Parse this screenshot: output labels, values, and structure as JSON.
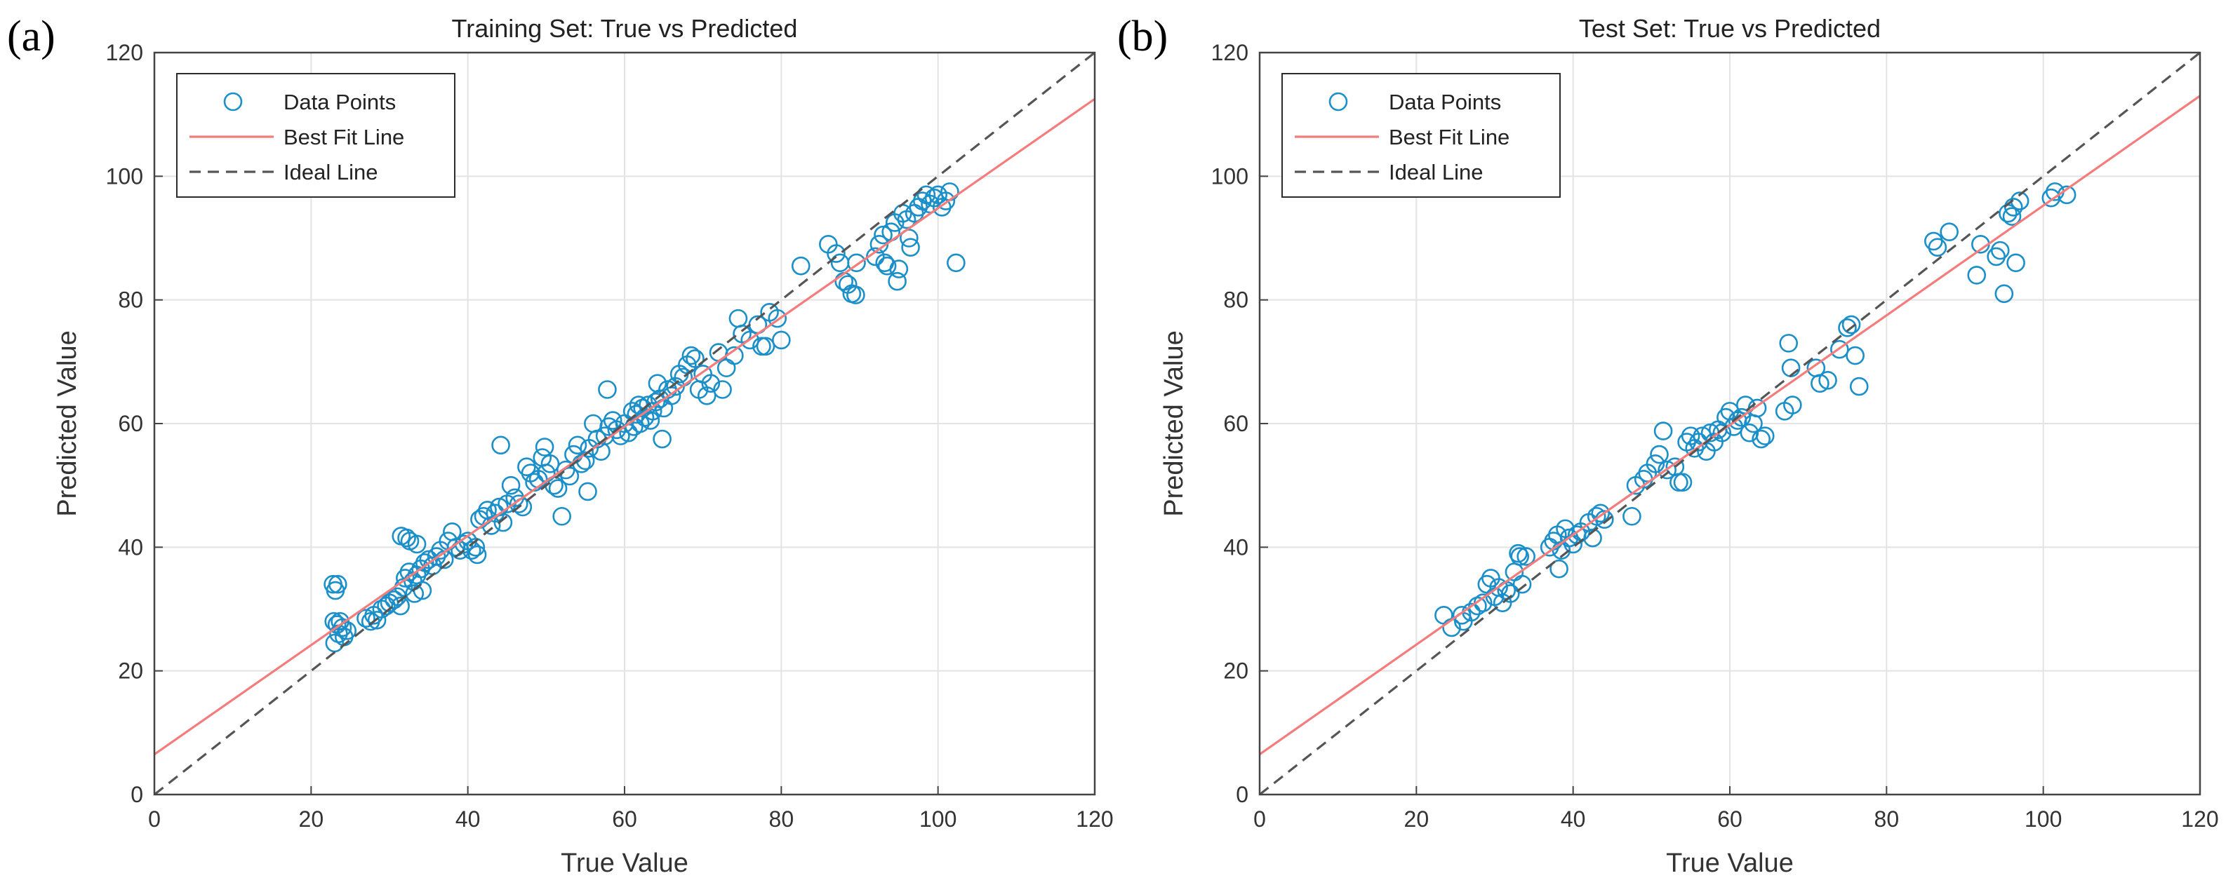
{
  "colors": {
    "points": "#1a8fc9",
    "fit_line": "#f47c7c",
    "ideal_line": "#555555",
    "grid": "#e3e3e3",
    "axes": "#444444"
  },
  "legend_location": "top-left",
  "chart_data": [
    {
      "type": "scatter",
      "panel_label": "(a)",
      "title": "Training Set: True vs Predicted",
      "xlabel": "True Value",
      "ylabel": "Predicted Value",
      "xlim": [
        0,
        120
      ],
      "ylim": [
        0,
        120
      ],
      "xticks": [
        "0",
        "20",
        "40",
        "60",
        "80",
        "100",
        "120"
      ],
      "yticks": [
        "0",
        "20",
        "40",
        "60",
        "80",
        "100",
        "120"
      ],
      "grid": true,
      "legend": [
        "Data Points",
        "Best Fit Line",
        "Ideal Line"
      ],
      "series": [
        {
          "name": "Data Points",
          "kind": "markers",
          "points": [
            [
              22.8,
              34
            ],
            [
              23.1,
              33
            ],
            [
              23.4,
              34
            ],
            [
              22.9,
              28
            ],
            [
              23.3,
              27.5
            ],
            [
              23.7,
              28
            ],
            [
              24,
              27
            ],
            [
              23.5,
              26
            ],
            [
              24.2,
              25.5
            ],
            [
              23,
              24.5
            ],
            [
              24.6,
              26.5
            ],
            [
              27,
              28.5
            ],
            [
              27.6,
              28
            ],
            [
              28,
              29
            ],
            [
              28.4,
              28.2
            ],
            [
              29,
              30
            ],
            [
              29.6,
              30.5
            ],
            [
              30,
              31
            ],
            [
              30.6,
              31.5
            ],
            [
              31,
              32
            ],
            [
              31.4,
              30.5
            ],
            [
              31.8,
              33.5
            ],
            [
              31.5,
              41.8
            ],
            [
              32.2,
              41.5
            ],
            [
              32.6,
              41
            ],
            [
              33.5,
              40.5
            ],
            [
              32,
              35
            ],
            [
              32.5,
              36
            ],
            [
              33,
              34.5
            ],
            [
              33.5,
              35.5
            ],
            [
              34,
              36.5
            ],
            [
              34.5,
              37.5
            ],
            [
              33.2,
              32.5
            ],
            [
              34.2,
              33
            ],
            [
              35,
              38
            ],
            [
              35.5,
              37
            ],
            [
              36,
              38.5
            ],
            [
              36.5,
              39.5
            ],
            [
              37,
              38
            ],
            [
              37.5,
              41
            ],
            [
              38,
              42.5
            ],
            [
              38.5,
              40
            ],
            [
              39,
              39.5
            ],
            [
              39.5,
              40.5
            ],
            [
              40,
              41
            ],
            [
              40.5,
              39.5
            ],
            [
              41,
              40
            ],
            [
              41.2,
              38.8
            ],
            [
              41.5,
              44.5
            ],
            [
              42,
              45
            ],
            [
              42.5,
              46
            ],
            [
              43,
              43.5
            ],
            [
              43.5,
              45.5
            ],
            [
              44,
              46.5
            ],
            [
              44.2,
              56.5
            ],
            [
              44.5,
              44
            ],
            [
              45,
              47
            ],
            [
              45.5,
              50
            ],
            [
              46,
              48
            ],
            [
              46.5,
              47
            ],
            [
              47,
              46.5
            ],
            [
              47.5,
              53
            ],
            [
              48,
              52
            ],
            [
              48.5,
              50.5
            ],
            [
              49,
              51
            ],
            [
              49.5,
              54.5
            ],
            [
              49.8,
              56.2
            ],
            [
              50,
              52
            ],
            [
              50.5,
              53.5
            ],
            [
              51,
              50
            ],
            [
              51.5,
              49.5
            ],
            [
              52,
              45
            ],
            [
              52.5,
              52.5
            ],
            [
              53,
              51.5
            ],
            [
              53.5,
              55
            ],
            [
              54,
              56.5
            ],
            [
              54.5,
              53.5
            ],
            [
              55,
              54
            ],
            [
              55.3,
              49
            ],
            [
              55.5,
              56
            ],
            [
              56,
              60
            ],
            [
              56.5,
              57.5
            ],
            [
              57,
              55.5
            ],
            [
              57.5,
              58
            ],
            [
              57.8,
              65.5
            ],
            [
              58,
              59.5
            ],
            [
              58.5,
              60.5
            ],
            [
              59,
              59
            ],
            [
              59.5,
              58
            ],
            [
              60,
              60
            ],
            [
              60.5,
              58.5
            ],
            [
              61,
              62
            ],
            [
              61.2,
              59.5
            ],
            [
              61.5,
              61.5
            ],
            [
              61.8,
              63
            ],
            [
              62,
              60
            ],
            [
              62.3,
              62.5
            ],
            [
              62.6,
              61
            ],
            [
              63,
              63
            ],
            [
              63.3,
              60.5
            ],
            [
              63.6,
              62
            ],
            [
              64,
              63.5
            ],
            [
              64.2,
              66.5
            ],
            [
              64.5,
              64
            ],
            [
              64.8,
              57.5
            ],
            [
              65,
              62.5
            ],
            [
              65.5,
              65.5
            ],
            [
              66,
              64.5
            ],
            [
              66.5,
              66
            ],
            [
              67,
              68
            ],
            [
              67.5,
              67.5
            ],
            [
              68,
              69.5
            ],
            [
              68.5,
              71
            ],
            [
              69,
              70.5
            ],
            [
              69.5,
              65.5
            ],
            [
              70,
              68
            ],
            [
              70.5,
              64.5
            ],
            [
              71,
              66.5
            ],
            [
              72,
              71.5
            ],
            [
              72.5,
              65.5
            ],
            [
              73,
              69
            ],
            [
              74,
              71
            ],
            [
              74.5,
              77
            ],
            [
              75,
              74.5
            ],
            [
              76,
              73.5
            ],
            [
              77,
              76
            ],
            [
              77.5,
              72.5
            ],
            [
              78,
              72.5
            ],
            [
              78.5,
              78
            ],
            [
              79.5,
              77
            ],
            [
              80,
              73.5
            ],
            [
              82.5,
              85.5
            ],
            [
              86,
              89
            ],
            [
              87,
              87.5
            ],
            [
              87.5,
              86
            ],
            [
              88,
              83
            ],
            [
              88.5,
              82.5
            ],
            [
              89,
              81
            ],
            [
              89.5,
              80.8
            ],
            [
              89.6,
              86
            ],
            [
              92,
              87
            ],
            [
              92.5,
              89
            ],
            [
              93,
              90.5
            ],
            [
              93.2,
              86
            ],
            [
              93.5,
              85.5
            ],
            [
              94,
              91
            ],
            [
              94.5,
              92.5
            ],
            [
              94.8,
              83
            ],
            [
              95,
              85
            ],
            [
              95.5,
              94
            ],
            [
              96,
              93
            ],
            [
              96.3,
              90
            ],
            [
              96.5,
              88.5
            ],
            [
              97,
              94
            ],
            [
              97.5,
              95
            ],
            [
              98,
              96
            ],
            [
              98.5,
              97
            ],
            [
              99,
              95.5
            ],
            [
              99.5,
              96.5
            ],
            [
              100,
              97
            ],
            [
              100.5,
              95
            ],
            [
              101,
              96
            ],
            [
              101.5,
              97.5
            ],
            [
              102.3,
              86
            ]
          ]
        },
        {
          "name": "Best Fit Line",
          "kind": "line",
          "points": [
            [
              0,
              6.5
            ],
            [
              120,
              112.5
            ]
          ]
        },
        {
          "name": "Ideal Line",
          "kind": "dashed",
          "points": [
            [
              0,
              0
            ],
            [
              120,
              120
            ]
          ]
        }
      ]
    },
    {
      "type": "scatter",
      "panel_label": "(b)",
      "title": "Test Set: True vs Predicted",
      "xlabel": "True Value",
      "ylabel": "Predicted Value",
      "xlim": [
        0,
        120
      ],
      "ylim": [
        0,
        120
      ],
      "xticks": [
        "0",
        "20",
        "40",
        "60",
        "80",
        "100",
        "120"
      ],
      "yticks": [
        "0",
        "20",
        "40",
        "60",
        "80",
        "100",
        "120"
      ],
      "grid": true,
      "legend": [
        "Data Points",
        "Best Fit Line",
        "Ideal Line"
      ],
      "series": [
        {
          "name": "Data Points",
          "kind": "markers",
          "points": [
            [
              23.5,
              29
            ],
            [
              24.5,
              27
            ],
            [
              25.8,
              29
            ],
            [
              26,
              28
            ],
            [
              27,
              29.5
            ],
            [
              27.8,
              30.5
            ],
            [
              28.5,
              31
            ],
            [
              29,
              34
            ],
            [
              29.5,
              35
            ],
            [
              30,
              32
            ],
            [
              30.5,
              33.5
            ],
            [
              31,
              31
            ],
            [
              31.5,
              33
            ],
            [
              32,
              32.5
            ],
            [
              32.5,
              36
            ],
            [
              33,
              39
            ],
            [
              33.2,
              38.5
            ],
            [
              33.5,
              34
            ],
            [
              34,
              38.5
            ],
            [
              37,
              40
            ],
            [
              37.5,
              41
            ],
            [
              38,
              42
            ],
            [
              38.2,
              36.5
            ],
            [
              38.5,
              39.5
            ],
            [
              39,
              43
            ],
            [
              39.5,
              41.5
            ],
            [
              40,
              40.5
            ],
            [
              40.5,
              42
            ],
            [
              41,
              42.5
            ],
            [
              42,
              44
            ],
            [
              42.5,
              41.5
            ],
            [
              43,
              45
            ],
            [
              43.5,
              45.5
            ],
            [
              44,
              44.5
            ],
            [
              47.5,
              45
            ],
            [
              48,
              50
            ],
            [
              49,
              51
            ],
            [
              49.5,
              52
            ],
            [
              50.5,
              53.5
            ],
            [
              51,
              55
            ],
            [
              51.5,
              58.8
            ],
            [
              52,
              52.5
            ],
            [
              53,
              53
            ],
            [
              53.5,
              50.5
            ],
            [
              54,
              50.5
            ],
            [
              54.5,
              57
            ],
            [
              55,
              58
            ],
            [
              55.5,
              56
            ],
            [
              56,
              57
            ],
            [
              56.5,
              58
            ],
            [
              57,
              55.5
            ],
            [
              57.5,
              58.5
            ],
            [
              58,
              57
            ],
            [
              58.5,
              59
            ],
            [
              59,
              58.5
            ],
            [
              59.5,
              61
            ],
            [
              60,
              62
            ],
            [
              60.5,
              59.5
            ],
            [
              61,
              60.5
            ],
            [
              61.5,
              61
            ],
            [
              62,
              63
            ],
            [
              62.5,
              58.5
            ],
            [
              63,
              60
            ],
            [
              63.5,
              62.5
            ],
            [
              64,
              57.5
            ],
            [
              64.5,
              58
            ],
            [
              67,
              62
            ],
            [
              67.5,
              73
            ],
            [
              67.8,
              69
            ],
            [
              68,
              63
            ],
            [
              71,
              69
            ],
            [
              71.5,
              66.5
            ],
            [
              72.5,
              67
            ],
            [
              74,
              72
            ],
            [
              75,
              75.5
            ],
            [
              75.5,
              76
            ],
            [
              76,
              71
            ],
            [
              76.5,
              66
            ],
            [
              86,
              89.5
            ],
            [
              86.5,
              88.5
            ],
            [
              88,
              91
            ],
            [
              91.5,
              84
            ],
            [
              92,
              89
            ],
            [
              94,
              87
            ],
            [
              94.5,
              88
            ],
            [
              95,
              81
            ],
            [
              95.5,
              94
            ],
            [
              96,
              93.5
            ],
            [
              96.2,
              95
            ],
            [
              96.5,
              86
            ],
            [
              97,
              96
            ],
            [
              101,
              96.5
            ],
            [
              101.5,
              97.5
            ],
            [
              103,
              97
            ]
          ]
        },
        {
          "name": "Best Fit Line",
          "kind": "line",
          "points": [
            [
              0,
              6.5
            ],
            [
              120,
              113
            ]
          ]
        },
        {
          "name": "Ideal Line",
          "kind": "dashed",
          "points": [
            [
              0,
              0
            ],
            [
              120,
              120
            ]
          ]
        }
      ]
    }
  ]
}
